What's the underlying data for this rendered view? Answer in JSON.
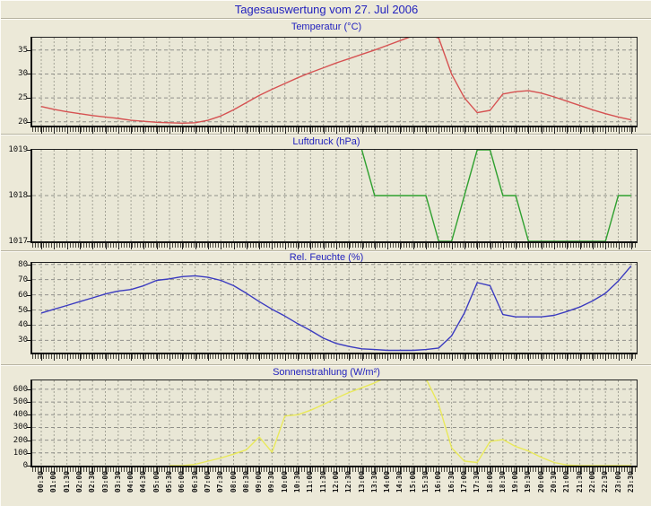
{
  "page": {
    "title": "Tagesauswertung vom 27. Jul 2006"
  },
  "colors": {
    "background": "#ece9d8",
    "plot_background": "#e9e7d6",
    "title_text": "#2222be",
    "grid_vertical": "#a3a396",
    "grid_horizontal": "#90908a",
    "axis": "#111111"
  },
  "x_axis": {
    "labels": [
      "00:30",
      "01:00",
      "01:30",
      "02:00",
      "02:30",
      "03:00",
      "03:30",
      "04:00",
      "04:30",
      "05:00",
      "05:30",
      "06:00",
      "06:30",
      "07:00",
      "07:30",
      "08:00",
      "08:30",
      "09:00",
      "09:30",
      "10:00",
      "10:30",
      "11:00",
      "11:30",
      "12:00",
      "12:30",
      "13:00",
      "13:30",
      "14:00",
      "14:30",
      "15:00",
      "15:30",
      "16:00",
      "16:30",
      "17:00",
      "17:30",
      "18:00",
      "18:30",
      "19:00",
      "19:30",
      "20:00",
      "20:30",
      "21:00",
      "21:30",
      "22:00",
      "22:30",
      "23:00",
      "23:30"
    ]
  },
  "chart_data": [
    {
      "type": "line",
      "title": "Temperatur (°C)",
      "color": "#d65252",
      "ylim": [
        19.2,
        37.6
      ],
      "yticks": [
        20,
        25,
        30,
        35
      ],
      "values": [
        23.2,
        22.6,
        22.1,
        21.7,
        21.3,
        21.0,
        20.7,
        20.3,
        20.1,
        19.9,
        19.8,
        19.7,
        19.8,
        20.3,
        21.2,
        22.5,
        24.0,
        25.5,
        26.8,
        28.0,
        29.2,
        30.3,
        31.3,
        32.3,
        33.2,
        34.1,
        35.0,
        36.0,
        37.0,
        38.0,
        38.4,
        37.5,
        30.0,
        25.0,
        21.9,
        22.4,
        25.8,
        26.3,
        26.5,
        26.0,
        25.2,
        24.3,
        23.4,
        22.5,
        21.7,
        21.0,
        20.4
      ]
    },
    {
      "type": "line",
      "title": "Luftdruck (hPa)",
      "color": "#2fa02f",
      "ylim": [
        1017,
        1019
      ],
      "yticks": [
        1017,
        1018,
        1019
      ],
      "values": [
        null,
        null,
        null,
        null,
        null,
        null,
        null,
        null,
        null,
        null,
        null,
        null,
        null,
        null,
        null,
        null,
        null,
        null,
        null,
        null,
        null,
        null,
        null,
        null,
        null,
        1019,
        1018,
        1018,
        1018,
        1018,
        1018,
        1017,
        1017,
        1018,
        1019,
        1019,
        1018,
        1018,
        1017,
        1017,
        1017,
        1017,
        1017,
        1017,
        1017,
        1018,
        1018
      ]
    },
    {
      "type": "line",
      "title": "Rel. Feuchte (%)",
      "color": "#3b3bc0",
      "ylim": [
        22,
        81
      ],
      "yticks": [
        30,
        40,
        50,
        60,
        70,
        80
      ],
      "values": [
        48,
        50.5,
        53,
        55.5,
        58,
        60.5,
        62.5,
        63.5,
        66,
        69.5,
        70.5,
        72,
        72.5,
        71.5,
        69.5,
        66,
        61,
        55.5,
        50.5,
        46,
        41,
        36.5,
        31.5,
        28,
        26,
        24.5,
        24,
        23.5,
        23.5,
        23.5,
        24,
        25,
        33,
        48,
        68,
        66,
        47,
        45.5,
        45.5,
        45.5,
        46.5,
        49,
        52,
        56,
        61,
        69,
        79
      ]
    },
    {
      "type": "line",
      "title": "Sonnenstrahlung (W/m²)",
      "color": "#e9e95a",
      "ylim": [
        0,
        670
      ],
      "yticks": [
        0,
        100,
        200,
        300,
        400,
        500,
        600
      ],
      "values": [
        null,
        null,
        null,
        null,
        null,
        null,
        null,
        null,
        null,
        null,
        0,
        0,
        10,
        35,
        60,
        90,
        125,
        225,
        105,
        390,
        400,
        435,
        480,
        530,
        575,
        612,
        650,
        700,
        720,
        715,
        685,
        480,
        140,
        35,
        25,
        190,
        205,
        150,
        115,
        65,
        25,
        5,
        0,
        0,
        0,
        0,
        0
      ]
    }
  ]
}
